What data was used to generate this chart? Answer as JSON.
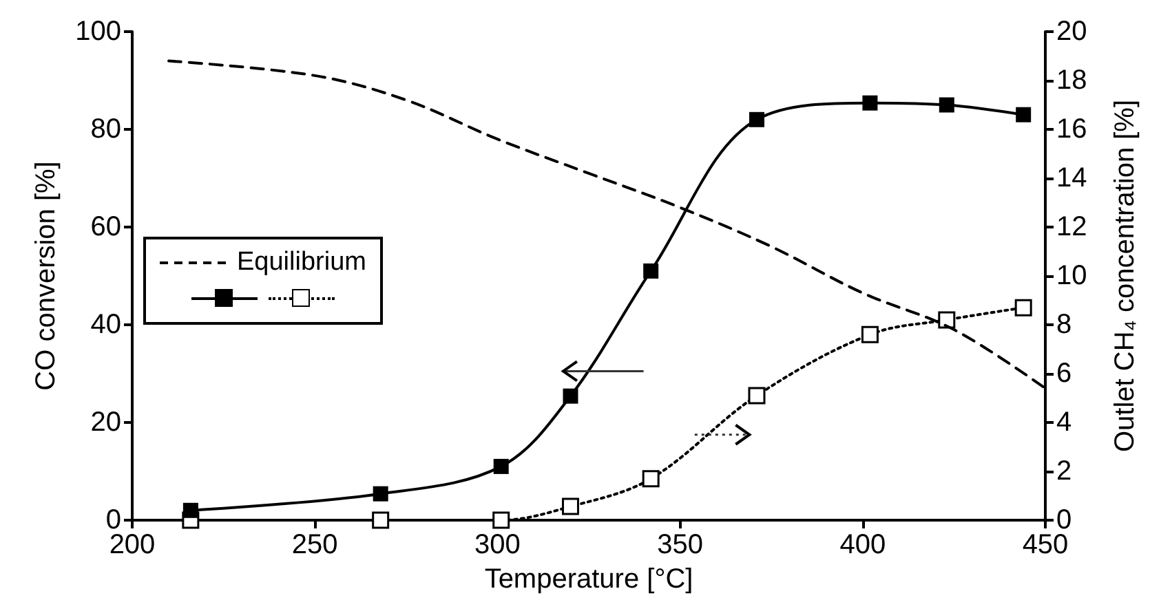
{
  "chart_data": {
    "type": "line",
    "xlabel": "Temperature [°C]",
    "ylabel": "CO conversion [%]",
    "y2label": "Outlet CH₄ concentration [%]",
    "xlim": [
      200,
      450
    ],
    "xticks": [
      200,
      250,
      300,
      350,
      400,
      450
    ],
    "ylim": [
      0,
      100
    ],
    "yticks": [
      0,
      20,
      40,
      60,
      80,
      100
    ],
    "y2lim": [
      0,
      20
    ],
    "y2ticks": [
      0,
      2,
      4,
      6,
      8,
      10,
      12,
      14,
      16,
      18,
      20
    ],
    "grid": false,
    "legend": "left",
    "series": [
      {
        "name": "Equilibrium",
        "color": "#000000",
        "marker": "none",
        "line_style": "dashed",
        "x": [
          210,
          250,
          275,
          300,
          325,
          350,
          375,
          400,
          425,
          450
        ],
        "values": [
          94,
          91,
          86,
          78,
          71,
          64,
          56,
          46.5,
          39,
          27
        ]
      },
      {
        "color": "#000000",
        "marker": "square",
        "line_style": "solid",
        "x": [
          216,
          268,
          301,
          320,
          342,
          371,
          402,
          423,
          444
        ],
        "values": [
          2,
          5.4,
          11,
          25.4,
          51,
          82,
          85.4,
          85,
          83
        ]
      },
      {
        "color": "#ffffff",
        "marker": "square",
        "line_style": "dotted",
        "axis": "y2",
        "x": [
          216,
          268,
          301,
          320,
          342,
          371,
          402,
          423,
          444
        ],
        "values": [
          0,
          0,
          0,
          0.56,
          1.7,
          5.1,
          7.6,
          8.2,
          8.7
        ]
      }
    ]
  }
}
